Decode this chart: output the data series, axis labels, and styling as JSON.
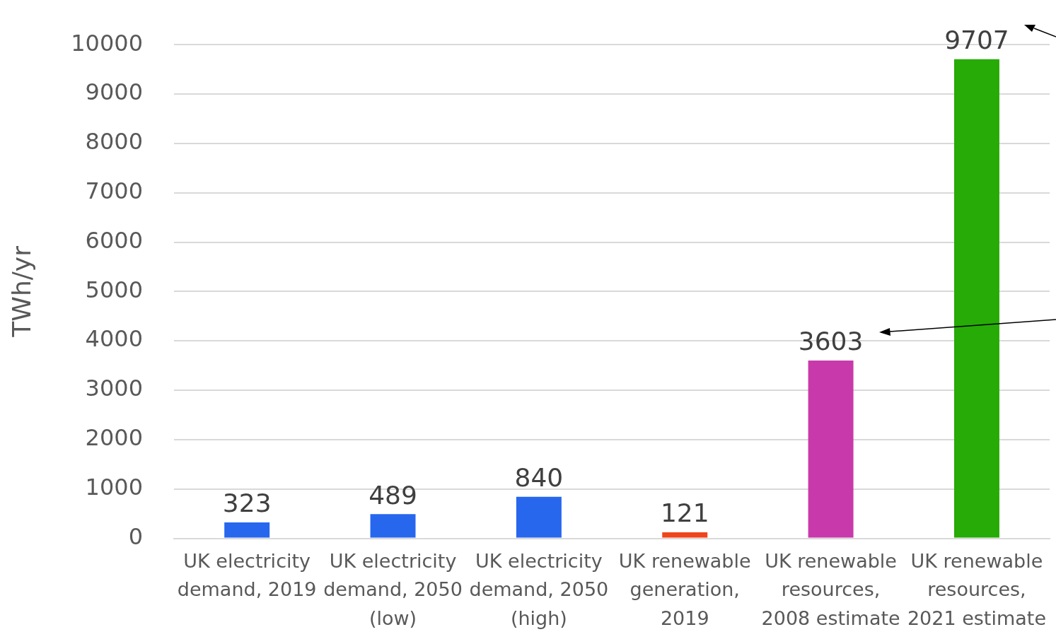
{
  "chart_data": {
    "type": "bar",
    "ylabel": "TWh/yr",
    "categories": [
      "UK electricity demand, 2019",
      "UK electricity demand, 2050 (low)",
      "UK electricity demand, 2050 (high)",
      "UK renewable generation, 2019",
      "UK renewable resources, 2008 estimate",
      "UK renewable resources, 2021 estimate"
    ],
    "values": [
      323,
      489,
      840,
      121,
      3603,
      9707
    ],
    "colors": [
      "#2767ee",
      "#2767ee",
      "#2767ee",
      "#f0441b",
      "#c83aab",
      "#27ab06"
    ],
    "ylim": [
      0,
      10000
    ],
    "yticks": [
      0,
      1000,
      2000,
      3000,
      4000,
      5000,
      6000,
      7000,
      8000,
      9000,
      10000
    ],
    "grid": "y",
    "data_labels": true,
    "legend": false
  }
}
